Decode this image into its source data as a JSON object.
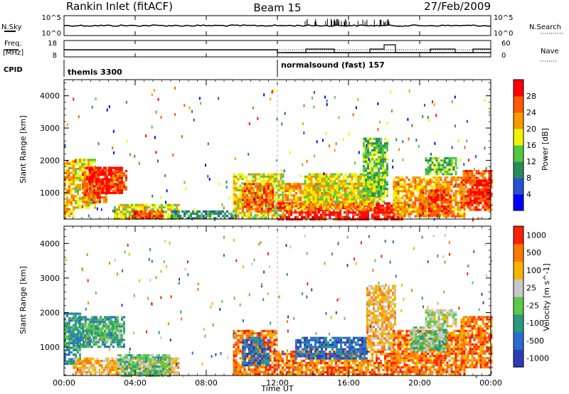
{
  "header": {
    "title": "Rankin Inlet (fitACF)",
    "beam": "Beam 15",
    "date": "27/Feb/2009"
  },
  "panels": {
    "nsky_label": "N.Sky",
    "nsearch_label": "N.Search",
    "nsky_ticks": [
      "10^5",
      "10^0"
    ],
    "freq_label": "Freq.",
    "freq_unit": "[MHz]",
    "freq_ticks": [
      "18",
      "8"
    ],
    "nave_label": "Nave",
    "nave_ticks": [
      "60",
      "0"
    ],
    "cpid_label": "CPID",
    "cpid_left": "themis 3300",
    "cpid_right": "normalsound (fast) 157"
  },
  "chart_data": [
    {
      "type": "heatmap",
      "name": "power",
      "ylabel": "Slant Range [km]",
      "yticks": [
        1000,
        2000,
        3000,
        4000
      ],
      "ylim": [
        180,
        4500
      ],
      "colorbar_label": "Power [dB]",
      "colorbar_ticks": [
        "4",
        "8",
        "12",
        "16",
        "20",
        "24",
        "28"
      ],
      "colors": [
        "#0000ff",
        "#2850d0",
        "#2b8c5a",
        "#52c840",
        "#f2f200",
        "#f59b00",
        "#ff5a00",
        "#ff0000"
      ],
      "regions": [
        {
          "t": [
            0.0,
            0.6
          ],
          "r": [
            300,
            2000
          ],
          "level": 5
        },
        {
          "t": [
            0.6,
            1.7
          ],
          "r": [
            500,
            2050
          ],
          "level": 4
        },
        {
          "t": [
            1.0,
            2.4
          ],
          "r": [
            700,
            1800
          ],
          "level": 6
        },
        {
          "t": [
            1.4,
            3.3
          ],
          "r": [
            1000,
            1800
          ],
          "level": 7
        },
        {
          "t": [
            2.6,
            3.5
          ],
          "r": [
            1100,
            1700
          ],
          "level": 6
        },
        {
          "t": [
            2.8,
            6.5
          ],
          "r": [
            200,
            650
          ],
          "level": 4
        },
        {
          "t": [
            3.8,
            5.6
          ],
          "r": [
            200,
            450
          ],
          "level": 6
        },
        {
          "t": [
            6.0,
            9.8
          ],
          "r": [
            200,
            450
          ],
          "level": 2
        },
        {
          "t": [
            9.5,
            12.3
          ],
          "r": [
            200,
            1600
          ],
          "level": 4
        },
        {
          "t": [
            10.0,
            11.8
          ],
          "r": [
            400,
            1300
          ],
          "level": 6
        },
        {
          "t": [
            12.0,
            19.0
          ],
          "r": [
            200,
            700
          ],
          "level": 7
        },
        {
          "t": [
            12.4,
            17.4
          ],
          "r": [
            500,
            1300
          ],
          "level": 5
        },
        {
          "t": [
            13.5,
            18.0
          ],
          "r": [
            700,
            1600
          ],
          "level": 4
        },
        {
          "t": [
            16.8,
            18.2
          ],
          "r": [
            900,
            2700
          ],
          "level": 3
        },
        {
          "t": [
            18.5,
            22.5
          ],
          "r": [
            300,
            1500
          ],
          "level": 5
        },
        {
          "t": [
            20.0,
            21.8
          ],
          "r": [
            300,
            1100
          ],
          "level": 6
        },
        {
          "t": [
            20.3,
            22.0
          ],
          "r": [
            1600,
            2100
          ],
          "level": 3
        },
        {
          "t": [
            22.3,
            24.0
          ],
          "r": [
            500,
            1700
          ],
          "level": 6
        },
        {
          "t": [
            22.8,
            24.0
          ],
          "r": [
            700,
            1400
          ],
          "level": 7
        }
      ]
    },
    {
      "type": "heatmap",
      "name": "velocity",
      "ylabel": "Slant Range [km]",
      "yticks": [
        1000,
        2000,
        3000,
        4000
      ],
      "ylim": [
        180,
        4500
      ],
      "colorbar_label": "Velocity [m s^-1]",
      "colorbar_ticks": [
        "1000",
        "500",
        "100",
        "25",
        "-25",
        "-100",
        "-500",
        "-1000"
      ],
      "colors": [
        "#2e3cb4",
        "#2d6ccc",
        "#2a9a80",
        "#5ec84a",
        "#c8c8c8",
        "#f5b400",
        "#ff7800",
        "#ff1e00"
      ],
      "regions": [
        {
          "t": [
            0.0,
            0.9
          ],
          "r": [
            500,
            2000
          ],
          "level": 2
        },
        {
          "t": [
            0.8,
            3.4
          ],
          "r": [
            1000,
            1900
          ],
          "level": 2
        },
        {
          "t": [
            1.0,
            3.2
          ],
          "r": [
            1200,
            1700
          ],
          "level": 3
        },
        {
          "t": [
            0.5,
            6.5
          ],
          "r": [
            200,
            700
          ],
          "level": 5
        },
        {
          "t": [
            3.0,
            6.0
          ],
          "r": [
            200,
            800
          ],
          "level": 3
        },
        {
          "t": [
            9.5,
            12.0
          ],
          "r": [
            200,
            1500
          ],
          "level": 6
        },
        {
          "t": [
            10.0,
            11.5
          ],
          "r": [
            500,
            1300
          ],
          "level": 1
        },
        {
          "t": [
            12.0,
            18.5
          ],
          "r": [
            200,
            900
          ],
          "level": 6
        },
        {
          "t": [
            13.0,
            17.0
          ],
          "r": [
            700,
            1300
          ],
          "level": 1
        },
        {
          "t": [
            17.0,
            18.6
          ],
          "r": [
            900,
            2800
          ],
          "level": 5
        },
        {
          "t": [
            18.5,
            22.5
          ],
          "r": [
            200,
            1500
          ],
          "level": 6
        },
        {
          "t": [
            19.5,
            21.5
          ],
          "r": [
            900,
            1600
          ],
          "level": 3
        },
        {
          "t": [
            20.3,
            22.0
          ],
          "r": [
            1600,
            2100
          ],
          "level": 4
        },
        {
          "t": [
            22.3,
            24.0
          ],
          "r": [
            400,
            1900
          ],
          "level": 6
        }
      ]
    }
  ],
  "xaxis": {
    "label": "Time UT",
    "ticks": [
      "00:00",
      "04:00",
      "08:00",
      "12:00",
      "16:00",
      "20:00",
      "00:00"
    ],
    "range_hours": [
      0,
      24
    ]
  }
}
